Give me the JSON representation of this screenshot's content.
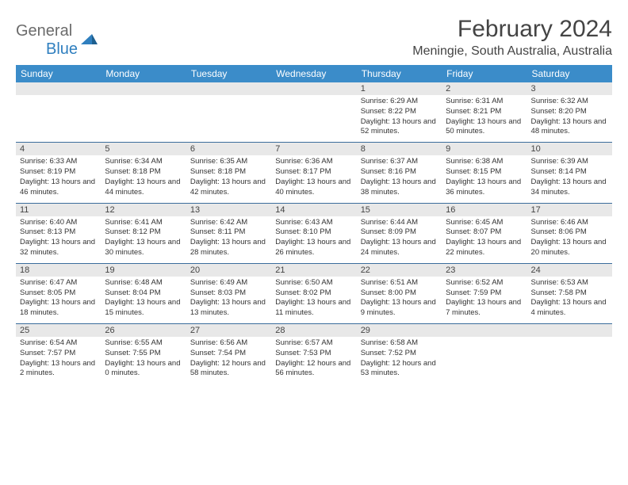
{
  "logo": {
    "top": "General",
    "bottom": "Blue"
  },
  "header": {
    "title": "February 2024",
    "location": "Meningie, South Australia, Australia"
  },
  "colors": {
    "header_bg": "#3b8cc9",
    "header_text": "#ffffff",
    "daynum_bg": "#e8e8e8",
    "row_border": "#3b6d9c",
    "logo_gray": "#6b6b6b",
    "logo_blue": "#2f7fbf"
  },
  "days": [
    "Sunday",
    "Monday",
    "Tuesday",
    "Wednesday",
    "Thursday",
    "Friday",
    "Saturday"
  ],
  "weeks": [
    [
      null,
      null,
      null,
      null,
      {
        "n": "1",
        "sr": "Sunrise: 6:29 AM",
        "ss": "Sunset: 8:22 PM",
        "dl": "Daylight: 13 hours and 52 minutes."
      },
      {
        "n": "2",
        "sr": "Sunrise: 6:31 AM",
        "ss": "Sunset: 8:21 PM",
        "dl": "Daylight: 13 hours and 50 minutes."
      },
      {
        "n": "3",
        "sr": "Sunrise: 6:32 AM",
        "ss": "Sunset: 8:20 PM",
        "dl": "Daylight: 13 hours and 48 minutes."
      }
    ],
    [
      {
        "n": "4",
        "sr": "Sunrise: 6:33 AM",
        "ss": "Sunset: 8:19 PM",
        "dl": "Daylight: 13 hours and 46 minutes."
      },
      {
        "n": "5",
        "sr": "Sunrise: 6:34 AM",
        "ss": "Sunset: 8:18 PM",
        "dl": "Daylight: 13 hours and 44 minutes."
      },
      {
        "n": "6",
        "sr": "Sunrise: 6:35 AM",
        "ss": "Sunset: 8:18 PM",
        "dl": "Daylight: 13 hours and 42 minutes."
      },
      {
        "n": "7",
        "sr": "Sunrise: 6:36 AM",
        "ss": "Sunset: 8:17 PM",
        "dl": "Daylight: 13 hours and 40 minutes."
      },
      {
        "n": "8",
        "sr": "Sunrise: 6:37 AM",
        "ss": "Sunset: 8:16 PM",
        "dl": "Daylight: 13 hours and 38 minutes."
      },
      {
        "n": "9",
        "sr": "Sunrise: 6:38 AM",
        "ss": "Sunset: 8:15 PM",
        "dl": "Daylight: 13 hours and 36 minutes."
      },
      {
        "n": "10",
        "sr": "Sunrise: 6:39 AM",
        "ss": "Sunset: 8:14 PM",
        "dl": "Daylight: 13 hours and 34 minutes."
      }
    ],
    [
      {
        "n": "11",
        "sr": "Sunrise: 6:40 AM",
        "ss": "Sunset: 8:13 PM",
        "dl": "Daylight: 13 hours and 32 minutes."
      },
      {
        "n": "12",
        "sr": "Sunrise: 6:41 AM",
        "ss": "Sunset: 8:12 PM",
        "dl": "Daylight: 13 hours and 30 minutes."
      },
      {
        "n": "13",
        "sr": "Sunrise: 6:42 AM",
        "ss": "Sunset: 8:11 PM",
        "dl": "Daylight: 13 hours and 28 minutes."
      },
      {
        "n": "14",
        "sr": "Sunrise: 6:43 AM",
        "ss": "Sunset: 8:10 PM",
        "dl": "Daylight: 13 hours and 26 minutes."
      },
      {
        "n": "15",
        "sr": "Sunrise: 6:44 AM",
        "ss": "Sunset: 8:09 PM",
        "dl": "Daylight: 13 hours and 24 minutes."
      },
      {
        "n": "16",
        "sr": "Sunrise: 6:45 AM",
        "ss": "Sunset: 8:07 PM",
        "dl": "Daylight: 13 hours and 22 minutes."
      },
      {
        "n": "17",
        "sr": "Sunrise: 6:46 AM",
        "ss": "Sunset: 8:06 PM",
        "dl": "Daylight: 13 hours and 20 minutes."
      }
    ],
    [
      {
        "n": "18",
        "sr": "Sunrise: 6:47 AM",
        "ss": "Sunset: 8:05 PM",
        "dl": "Daylight: 13 hours and 18 minutes."
      },
      {
        "n": "19",
        "sr": "Sunrise: 6:48 AM",
        "ss": "Sunset: 8:04 PM",
        "dl": "Daylight: 13 hours and 15 minutes."
      },
      {
        "n": "20",
        "sr": "Sunrise: 6:49 AM",
        "ss": "Sunset: 8:03 PM",
        "dl": "Daylight: 13 hours and 13 minutes."
      },
      {
        "n": "21",
        "sr": "Sunrise: 6:50 AM",
        "ss": "Sunset: 8:02 PM",
        "dl": "Daylight: 13 hours and 11 minutes."
      },
      {
        "n": "22",
        "sr": "Sunrise: 6:51 AM",
        "ss": "Sunset: 8:00 PM",
        "dl": "Daylight: 13 hours and 9 minutes."
      },
      {
        "n": "23",
        "sr": "Sunrise: 6:52 AM",
        "ss": "Sunset: 7:59 PM",
        "dl": "Daylight: 13 hours and 7 minutes."
      },
      {
        "n": "24",
        "sr": "Sunrise: 6:53 AM",
        "ss": "Sunset: 7:58 PM",
        "dl": "Daylight: 13 hours and 4 minutes."
      }
    ],
    [
      {
        "n": "25",
        "sr": "Sunrise: 6:54 AM",
        "ss": "Sunset: 7:57 PM",
        "dl": "Daylight: 13 hours and 2 minutes."
      },
      {
        "n": "26",
        "sr": "Sunrise: 6:55 AM",
        "ss": "Sunset: 7:55 PM",
        "dl": "Daylight: 13 hours and 0 minutes."
      },
      {
        "n": "27",
        "sr": "Sunrise: 6:56 AM",
        "ss": "Sunset: 7:54 PM",
        "dl": "Daylight: 12 hours and 58 minutes."
      },
      {
        "n": "28",
        "sr": "Sunrise: 6:57 AM",
        "ss": "Sunset: 7:53 PM",
        "dl": "Daylight: 12 hours and 56 minutes."
      },
      {
        "n": "29",
        "sr": "Sunrise: 6:58 AM",
        "ss": "Sunset: 7:52 PM",
        "dl": "Daylight: 12 hours and 53 minutes."
      },
      null,
      null
    ]
  ]
}
